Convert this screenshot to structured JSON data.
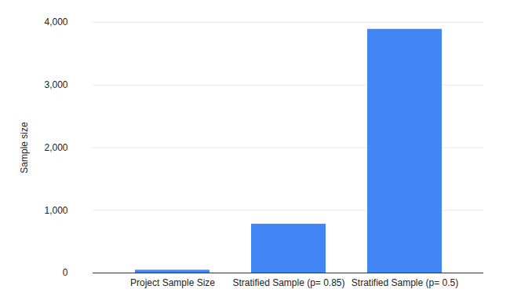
{
  "chart_data": {
    "type": "bar",
    "y_label": "Sample size",
    "categories": [
      "Project Sample Size",
      "Stratified Sample (p= 0.85)",
      "Stratified Sample (p= 0.5)"
    ],
    "values": [
      45,
      780,
      3890
    ],
    "color": "#4285f4",
    "ylim": [
      0,
      4000
    ],
    "yticks": [
      0,
      {
        "value": 1000,
        "label": "1,000"
      },
      {
        "value": 2000,
        "label": "2,000"
      },
      {
        "value": 3000,
        "label": "3,000"
      },
      {
        "value": 4000,
        "label": "4,000"
      }
    ],
    "grid": true
  }
}
